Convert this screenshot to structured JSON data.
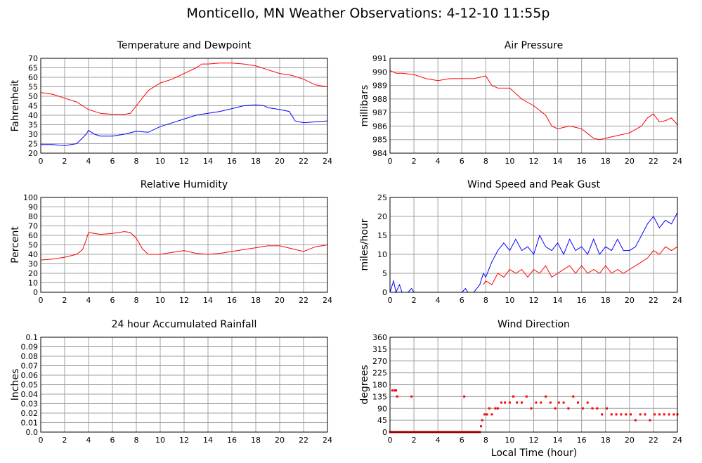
{
  "page": {
    "title": "Monticello, MN Weather Observations: 4-12-10 11:55p",
    "x_axis_label": "Local Time (hour)"
  },
  "colors": {
    "red": "#ff0000",
    "blue": "#0000ff",
    "grid": "#a0a0a0"
  },
  "chart_data": [
    {
      "type": "line",
      "title": "Temperature and Dewpoint",
      "xlabel": "",
      "ylabel": "Fahrenheit",
      "xlim": [
        0,
        24
      ],
      "ylim": [
        20,
        70
      ],
      "xticks": [
        0,
        2,
        4,
        6,
        8,
        10,
        12,
        14,
        16,
        18,
        20,
        22,
        24
      ],
      "yticks": [
        20,
        25,
        30,
        35,
        40,
        45,
        50,
        55,
        60,
        65,
        70
      ],
      "ytick_labels": [
        "20",
        "25",
        "30",
        "35",
        "40",
        "45",
        "50",
        "55",
        "60",
        "65",
        "70"
      ],
      "grid": true,
      "series": [
        {
          "color": "#ff0000",
          "x": [
            0,
            1,
            2,
            3,
            3.5,
            4,
            5,
            6,
            7,
            7.5,
            8,
            8.5,
            9,
            10,
            11,
            12,
            13,
            13.5,
            14,
            15,
            16,
            17,
            18,
            19,
            20,
            21,
            22,
            23,
            24
          ],
          "y": [
            52,
            51,
            49,
            47,
            45,
            43,
            41,
            40.5,
            40.5,
            41,
            45,
            49,
            53,
            57,
            59,
            62,
            65,
            67,
            67,
            67.5,
            67.5,
            67,
            66,
            64,
            62,
            61,
            59,
            56,
            55
          ]
        },
        {
          "color": "#0000ff",
          "x": [
            0,
            1,
            2,
            3,
            3.5,
            3.8,
            4,
            4.5,
            5,
            6,
            7,
            8,
            9,
            10,
            11,
            12,
            13,
            14,
            15,
            16,
            17,
            18,
            18.7,
            19,
            20,
            20.8,
            21.3,
            22,
            23,
            24
          ],
          "y": [
            24.5,
            24.5,
            24,
            25,
            28,
            30,
            32,
            30,
            29,
            29,
            30,
            31.5,
            31,
            34,
            36,
            38,
            40,
            41,
            42,
            43.5,
            45,
            45.5,
            45,
            44,
            43,
            42,
            37,
            36,
            36.5,
            37
          ]
        }
      ]
    },
    {
      "type": "line",
      "title": "Air Pressure",
      "xlabel": "",
      "ylabel": "millibars",
      "xlim": [
        0,
        24
      ],
      "ylim": [
        984,
        991
      ],
      "xticks": [
        0,
        2,
        4,
        6,
        8,
        10,
        12,
        14,
        16,
        18,
        20,
        22,
        24
      ],
      "yticks": [
        984,
        985,
        986,
        987,
        988,
        989,
        990,
        991
      ],
      "ytick_labels": [
        "984",
        "985",
        "986",
        "987",
        "988",
        "989",
        "990",
        "991"
      ],
      "grid": true,
      "series": [
        {
          "color": "#ff0000",
          "x": [
            0,
            0.5,
            1,
            2,
            3,
            4,
            5,
            6,
            7,
            8,
            8.5,
            9,
            10,
            11,
            12,
            13,
            13.5,
            14,
            15,
            16,
            17,
            17.5,
            18,
            19,
            20,
            21,
            21.5,
            22,
            22.5,
            23,
            23.5,
            24
          ],
          "y": [
            990.1,
            989.9,
            989.9,
            989.8,
            989.5,
            989.35,
            989.5,
            989.5,
            989.5,
            989.7,
            989.0,
            988.8,
            988.8,
            988.0,
            987.5,
            986.8,
            986.0,
            985.8,
            986.0,
            985.8,
            985.1,
            985.0,
            985.1,
            985.3,
            985.5,
            986.0,
            986.6,
            986.9,
            986.3,
            986.4,
            986.6,
            986.1
          ]
        }
      ]
    },
    {
      "type": "line",
      "title": "Relative Humidity",
      "xlabel": "",
      "ylabel": "Percent",
      "xlim": [
        0,
        24
      ],
      "ylim": [
        0,
        100
      ],
      "xticks": [
        0,
        2,
        4,
        6,
        8,
        10,
        12,
        14,
        16,
        18,
        20,
        22,
        24
      ],
      "yticks": [
        0,
        10,
        20,
        30,
        40,
        50,
        60,
        70,
        80,
        90,
        100
      ],
      "ytick_labels": [
        "0",
        "10",
        "20",
        "30",
        "40",
        "50",
        "60",
        "70",
        "80",
        "90",
        "100"
      ],
      "grid": true,
      "series": [
        {
          "color": "#ff0000",
          "x": [
            0,
            1,
            2,
            3,
            3.5,
            3.8,
            4,
            5,
            6,
            7,
            7.5,
            8,
            8.5,
            9,
            10,
            11,
            12,
            13,
            14,
            15,
            16,
            17,
            18,
            19,
            20,
            21,
            22,
            23,
            24
          ],
          "y": [
            34,
            35,
            37,
            40,
            45,
            55,
            63,
            61,
            62,
            64,
            63,
            57,
            46,
            40,
            40,
            42,
            44,
            41,
            40,
            41,
            43,
            45,
            47,
            49,
            49,
            46,
            43,
            48,
            50
          ]
        }
      ]
    },
    {
      "type": "line",
      "title": "Wind Speed and Peak Gust",
      "xlabel": "",
      "ylabel": "miles/hour",
      "xlim": [
        0,
        24
      ],
      "ylim": [
        0,
        25
      ],
      "xticks": [
        0,
        2,
        4,
        6,
        8,
        10,
        12,
        14,
        16,
        18,
        20,
        22,
        24
      ],
      "yticks": [
        0,
        5,
        10,
        15,
        20,
        25
      ],
      "ytick_labels": [
        "0",
        "5",
        "10",
        "15",
        "20",
        "25"
      ],
      "grid": true,
      "series": [
        {
          "color": "#0000ff",
          "x": [
            0,
            0.3,
            0.5,
            0.8,
            1,
            1.5,
            1.8,
            2,
            4,
            6,
            6.3,
            6.5,
            7,
            7.5,
            7.8,
            8,
            8.5,
            9,
            9.5,
            10,
            10.5,
            11,
            11.5,
            12,
            12.5,
            13,
            13.5,
            14,
            14.5,
            15,
            15.5,
            16,
            16.5,
            17,
            17.5,
            18,
            18.5,
            19,
            19.5,
            20,
            20.5,
            21,
            21.5,
            22,
            22.5,
            23,
            23.5,
            24
          ],
          "y": [
            0,
            3,
            0,
            2,
            0,
            0,
            1,
            0,
            0,
            0,
            1,
            0,
            0,
            2,
            5,
            4,
            8,
            11,
            13,
            11,
            14,
            11,
            12,
            10,
            15,
            12,
            11,
            13,
            10,
            14,
            11,
            12,
            10,
            14,
            10,
            12,
            11,
            14,
            11,
            11,
            12,
            15,
            18,
            20,
            17,
            19,
            18,
            21
          ]
        },
        {
          "color": "#ff0000",
          "x": [
            7.8,
            8,
            8.5,
            9,
            9.5,
            10,
            10.5,
            11,
            11.5,
            12,
            12.5,
            13,
            13.5,
            14,
            14.5,
            15,
            15.5,
            16,
            16.5,
            17,
            17.5,
            18,
            18.5,
            19,
            19.5,
            20,
            20.5,
            21,
            21.5,
            22,
            22.5,
            23,
            23.5,
            24
          ],
          "y": [
            2,
            3,
            2,
            5,
            4,
            6,
            5,
            6,
            4,
            6,
            5,
            7,
            4,
            5,
            6,
            7,
            5,
            7,
            5,
            6,
            5,
            7,
            5,
            6,
            5,
            6,
            7,
            8,
            9,
            11,
            10,
            12,
            11,
            12
          ]
        }
      ]
    },
    {
      "type": "line",
      "title": "24 hour Accumulated Rainfall",
      "xlabel": "",
      "ylabel": "Inches",
      "xlim": [
        0,
        24
      ],
      "ylim": [
        0,
        0.1
      ],
      "xticks": [
        0,
        2,
        4,
        6,
        8,
        10,
        12,
        14,
        16,
        18,
        20,
        22,
        24
      ],
      "yticks": [
        0,
        0.01,
        0.02,
        0.03,
        0.04,
        0.05,
        0.06,
        0.07,
        0.08,
        0.09,
        0.1
      ],
      "ytick_labels": [
        "0.0",
        "0.01",
        "0.02",
        "0.03",
        "0.04",
        "0.05",
        "0.06",
        "0.07",
        "0.08",
        "0.09",
        "0.1"
      ],
      "grid": true,
      "series": [
        {
          "color": "#ff0000",
          "x": [
            0,
            24
          ],
          "y": [
            0,
            0
          ]
        }
      ]
    },
    {
      "type": "scatter",
      "title": "Wind Direction",
      "xlabel": "Local Time (hour)",
      "ylabel": "degrees",
      "xlim": [
        0,
        24
      ],
      "ylim": [
        0,
        360
      ],
      "xticks": [
        0,
        2,
        4,
        6,
        8,
        10,
        12,
        14,
        16,
        18,
        20,
        22,
        24
      ],
      "yticks": [
        0,
        45,
        90,
        135,
        180,
        225,
        270,
        315,
        360
      ],
      "ytick_labels": [
        "0",
        "45",
        "90",
        "135",
        "180",
        "225",
        "270",
        "315",
        "360"
      ],
      "grid": true,
      "series": [
        {
          "color": "#ff0000",
          "x": [
            0.2,
            0.4,
            0.5,
            0.6,
            0.7,
            1.8,
            6.2,
            7.5,
            7.6,
            7.7,
            7.9,
            8.1,
            8.3,
            8.5,
            8.8,
            9.0,
            9.3,
            9.6,
            10.0,
            10.3,
            10.6,
            11.0,
            11.4,
            11.8,
            12.2,
            12.6,
            13.0,
            13.4,
            13.8,
            14.1,
            14.5,
            14.9,
            15.3,
            15.7,
            16.1,
            16.5,
            16.9,
            17.3,
            17.7,
            18.1,
            18.5,
            18.9,
            19.3,
            19.7,
            20.1,
            20.5,
            20.9,
            21.3,
            21.7,
            22.1,
            22.5,
            22.9,
            23.3,
            23.7,
            24.0
          ],
          "y": [
            158,
            158,
            158,
            135,
            0,
            135,
            135,
            0,
            22,
            45,
            67,
            67,
            90,
            67,
            90,
            90,
            112,
            112,
            112,
            135,
            112,
            112,
            135,
            90,
            112,
            112,
            135,
            112,
            90,
            112,
            112,
            90,
            135,
            112,
            90,
            112,
            90,
            90,
            67,
            90,
            67,
            67,
            67,
            67,
            67,
            45,
            67,
            67,
            45,
            67,
            67,
            67,
            67,
            67,
            67
          ]
        },
        {
          "color": "#ff0000",
          "x": [
            0,
            0.5,
            1,
            1.5,
            2,
            2.5,
            3,
            3.5,
            4,
            4.5,
            5,
            5.5,
            6,
            6.5,
            7,
            7.4
          ],
          "y": [
            0,
            0,
            0,
            0,
            0,
            0,
            0,
            0,
            0,
            0,
            0,
            0,
            0,
            0,
            0,
            0
          ]
        }
      ]
    }
  ]
}
